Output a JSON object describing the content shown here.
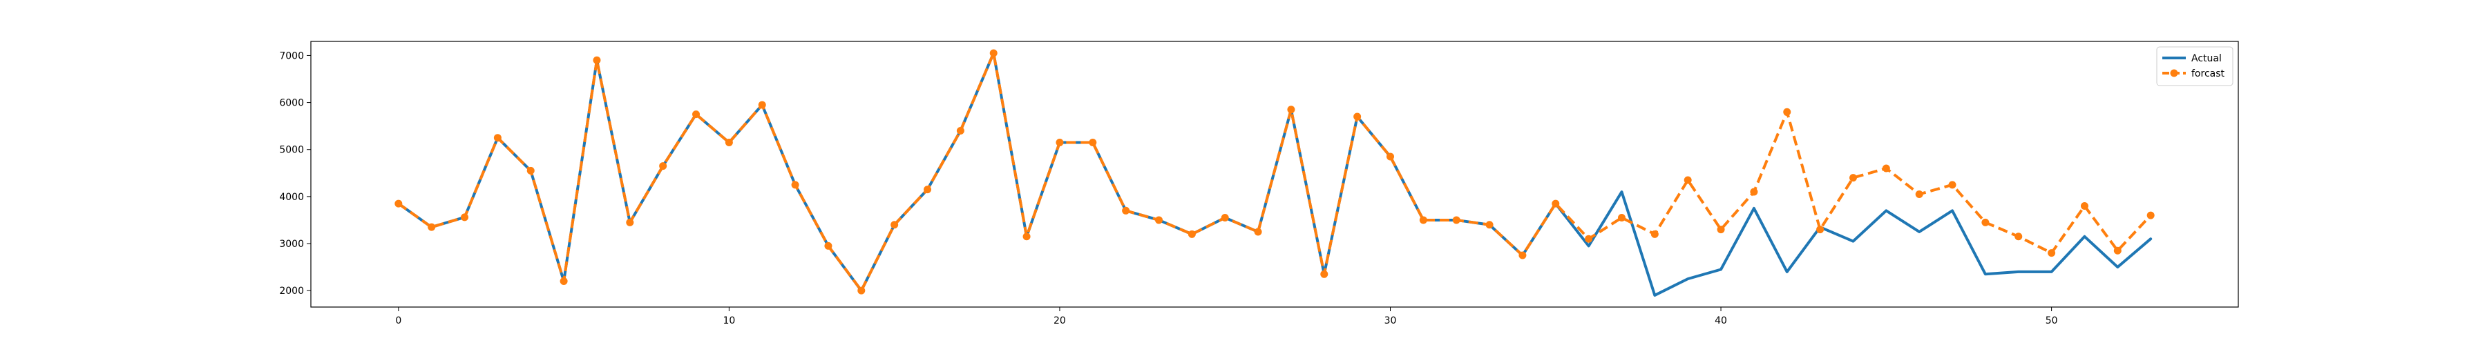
{
  "chart_data": {
    "type": "line",
    "title": "",
    "xlabel": "",
    "ylabel": "",
    "xlim": [
      -2.65,
      55.65
    ],
    "ylim": [
      1650,
      7300
    ],
    "xticks": [
      0,
      10,
      20,
      30,
      40,
      50
    ],
    "yticks": [
      2000,
      3000,
      4000,
      5000,
      6000,
      7000
    ],
    "grid": false,
    "legend": {
      "position": "top-right",
      "entries": [
        "Actual",
        "forcast"
      ]
    },
    "x": [
      0,
      1,
      2,
      3,
      4,
      5,
      6,
      7,
      8,
      9,
      10,
      11,
      12,
      13,
      14,
      15,
      16,
      17,
      18,
      19,
      20,
      21,
      22,
      23,
      24,
      25,
      26,
      27,
      28,
      29,
      30,
      31,
      32,
      33,
      34,
      35,
      36,
      37,
      38,
      39,
      40,
      41,
      42,
      43,
      44,
      45,
      46,
      47,
      48,
      49,
      50,
      51,
      52,
      53
    ],
    "series": [
      {
        "name": "Actual",
        "color": "#1f77b4",
        "style": "solid",
        "values": [
          3850,
          3350,
          3560,
          5250,
          4550,
          2200,
          6900,
          3450,
          4650,
          5750,
          5150,
          5950,
          4250,
          2950,
          2000,
          3400,
          4150,
          5400,
          7050,
          3150,
          5150,
          5150,
          3700,
          3500,
          3200,
          3550,
          3250,
          5850,
          2350,
          5700,
          4850,
          3500,
          3500,
          3400,
          2750,
          3850,
          2950,
          4100,
          1900,
          2250,
          2450,
          3750,
          2400,
          3350,
          3050,
          3700,
          3250,
          3700,
          2350,
          2400,
          2400,
          3150,
          2500,
          3100
        ]
      },
      {
        "name": "forcast",
        "color": "#ff7f0e",
        "style": "dashed",
        "marker": "circle",
        "values": [
          3850,
          3350,
          3560,
          5250,
          4550,
          2200,
          6900,
          3450,
          4650,
          5750,
          5150,
          5950,
          4250,
          2950,
          2000,
          3400,
          4150,
          5400,
          7050,
          3150,
          5150,
          5150,
          3700,
          3500,
          3200,
          3550,
          3250,
          5850,
          2350,
          5700,
          4850,
          3500,
          3500,
          3400,
          2750,
          3850,
          3100,
          3550,
          3200,
          4350,
          3300,
          4100,
          5800,
          3300,
          4400,
          4600,
          4050,
          4250,
          3450,
          3150,
          2800,
          3800,
          2850,
          3600
        ]
      }
    ]
  }
}
